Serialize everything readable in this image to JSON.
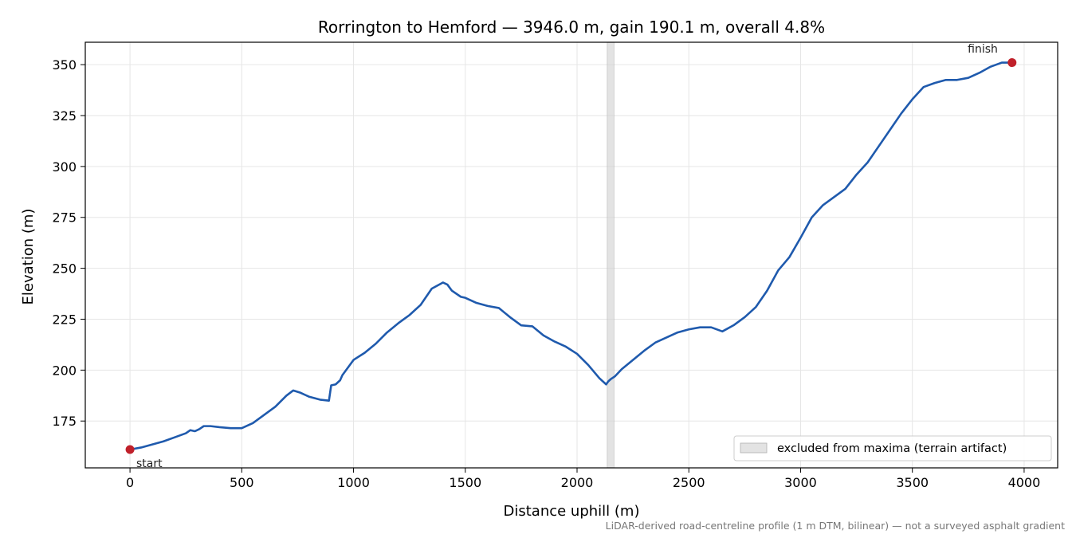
{
  "chart_data": {
    "type": "line",
    "title": "Rorrington to Hemford — 3946.0 m, gain 190.1 m, overall 4.8%",
    "xlabel": "Distance uphill (m)",
    "ylabel": "Elevation (m)",
    "xlim": [
      -200,
      4150
    ],
    "ylim": [
      152,
      361
    ],
    "xticks": [
      0,
      500,
      1000,
      1500,
      2000,
      2500,
      3000,
      3500,
      4000
    ],
    "yticks": [
      175,
      200,
      225,
      250,
      275,
      300,
      325,
      350
    ],
    "grid": true,
    "line_color": "#1f5aad",
    "marker_color": "#c0202a",
    "series": [
      {
        "x": [
          0,
          50,
          100,
          150,
          200,
          250,
          270,
          290,
          310,
          330,
          360,
          400,
          450,
          500,
          550,
          600,
          650,
          700,
          730,
          760,
          800,
          850,
          890,
          900,
          920,
          940,
          950,
          1000,
          1050,
          1100,
          1150,
          1200,
          1250,
          1300,
          1350,
          1400,
          1420,
          1440,
          1480,
          1500,
          1550,
          1600,
          1650,
          1700,
          1750,
          1800,
          1850,
          1900,
          1950,
          2000,
          2050,
          2100,
          2130,
          2140,
          2145,
          2150,
          2170,
          2200,
          2250,
          2300,
          2350,
          2400,
          2450,
          2500,
          2550,
          2600,
          2650,
          2700,
          2750,
          2800,
          2850,
          2900,
          2950,
          3000,
          3050,
          3100,
          3150,
          3200,
          3250,
          3300,
          3350,
          3400,
          3450,
          3500,
          3550,
          3600,
          3650,
          3700,
          3750,
          3800,
          3850,
          3900,
          3946
        ],
        "y": [
          161,
          162,
          163.5,
          165,
          167,
          169,
          170.5,
          170,
          171,
          172.5,
          172.5,
          172,
          171.5,
          171.5,
          174,
          178,
          182,
          187.5,
          190,
          189,
          187,
          185.5,
          185,
          192.5,
          193,
          195,
          197.5,
          205,
          208.5,
          213,
          218.5,
          223,
          227,
          232,
          240,
          243,
          242,
          239,
          236,
          235.5,
          233,
          231.5,
          230.5,
          226,
          222,
          221.5,
          217,
          214,
          211.5,
          208,
          202.5,
          196,
          193,
          194.5,
          195,
          195.5,
          197,
          200.5,
          205,
          209.5,
          213.5,
          216,
          218.5,
          220,
          221,
          221,
          219,
          222,
          226,
          231,
          239,
          249,
          255.5,
          265,
          275,
          281,
          285,
          289,
          296,
          302,
          310,
          318,
          326,
          333,
          339,
          341,
          342.5,
          342.5,
          343.5,
          346,
          349,
          351,
          351
        ]
      }
    ],
    "annotations": {
      "start": "start",
      "finish": "finish"
    },
    "legend": {
      "label": "excluded from maxima (terrain artifact)",
      "placement": "lower-right"
    },
    "excluded_band": [
      2135,
      2165
    ],
    "footnote": "LiDAR-derived road-centreline profile (1 m DTM, bilinear) — not a surveyed asphalt gradient"
  }
}
